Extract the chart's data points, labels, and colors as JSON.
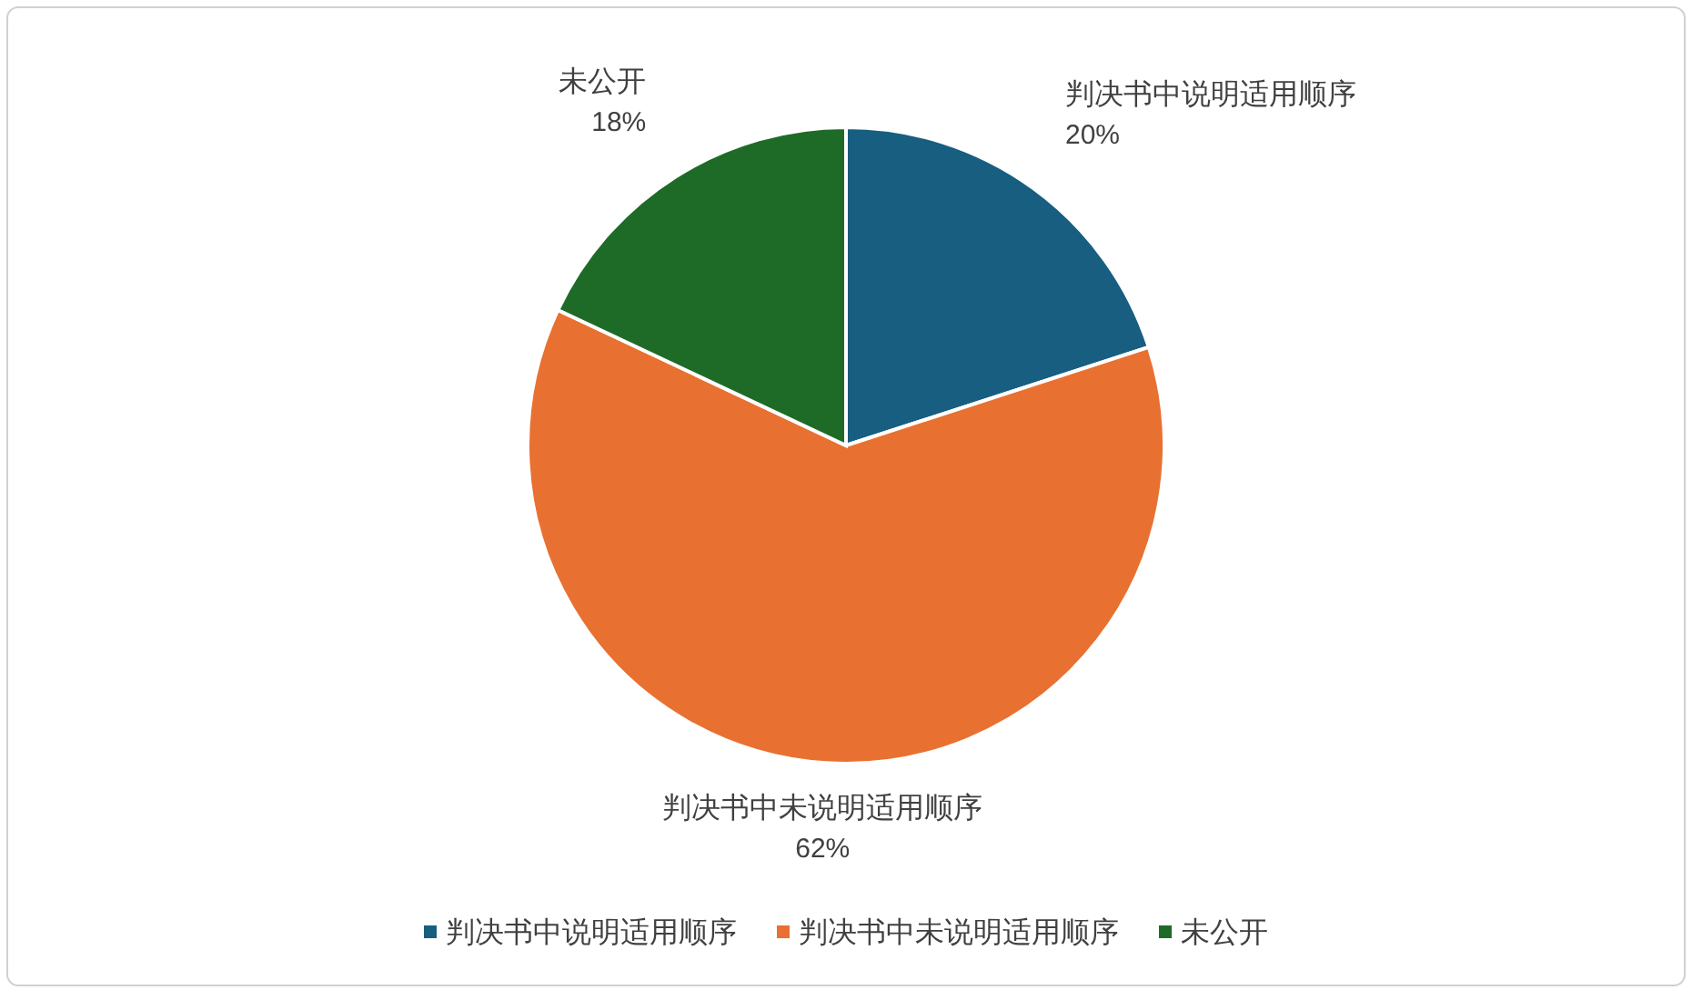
{
  "chart_data": {
    "type": "pie",
    "categories": [
      "判决书中说明适用顺序",
      "判决书中未说明适用顺序",
      "未公开"
    ],
    "values": [
      20,
      62,
      18
    ],
    "colors": [
      "#175e80",
      "#e87131",
      "#1e6b28"
    ],
    "value_labels": [
      "20%",
      "62%",
      "18%"
    ],
    "legend": "bottom"
  }
}
